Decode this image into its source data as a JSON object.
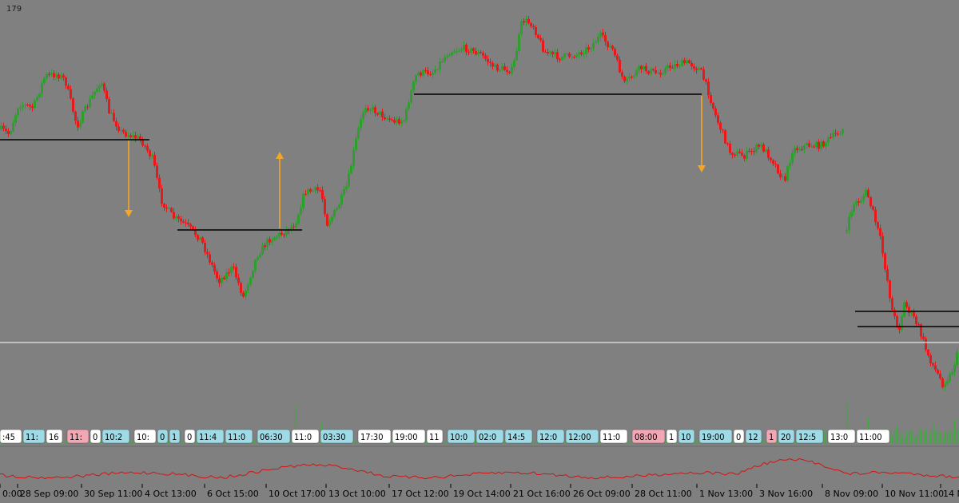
{
  "chart_data": {
    "type": "candlestick",
    "corner_label": "179",
    "x_tick_labels": [
      "0:00",
      "28 Sep 09:00",
      "30 Sep 11:00",
      "4 Oct 13:00",
      "6 Oct 15:00",
      "10 Oct 17:00",
      "13 Oct 10:00",
      "17 Oct 12:00",
      "19 Oct 14:00",
      "21 Oct 16:00",
      "26 Oct 09:00",
      "28 Oct 11:00",
      "1 Nov 13:00",
      "3 Nov 16:00",
      "8 Nov 09:00",
      "10 Nov 11:00",
      "14 N"
    ],
    "session_tags": [
      {
        "text": ":45",
        "color": "#ffffff"
      },
      {
        "text": "11:",
        "color": "#9fdbe7"
      },
      {
        "text": "16",
        "color": "#ffffff"
      },
      {
        "text": "11:",
        "color": "#f2a7b5"
      },
      {
        "text": "0",
        "color": "#ffffff"
      },
      {
        "text": "10:2",
        "color": "#9fdbe7"
      },
      {
        "text": "10:",
        "color": "#ffffff"
      },
      {
        "text": "0",
        "color": "#9fdbe7"
      },
      {
        "text": "1",
        "color": "#9fdbe7"
      },
      {
        "text": "0",
        "color": "#ffffff"
      },
      {
        "text": "11:4",
        "color": "#9fdbe7"
      },
      {
        "text": "11:0",
        "color": "#9fdbe7"
      },
      {
        "text": "06:30",
        "color": "#9fdbe7"
      },
      {
        "text": "11:0",
        "color": "#ffffff"
      },
      {
        "text": "03:30",
        "color": "#9fdbe7"
      },
      {
        "text": "17:30",
        "color": "#ffffff"
      },
      {
        "text": "19:00",
        "color": "#ffffff"
      },
      {
        "text": "11",
        "color": "#ffffff"
      },
      {
        "text": "10:0",
        "color": "#9fdbe7"
      },
      {
        "text": "02:0",
        "color": "#9fdbe7"
      },
      {
        "text": "14:5",
        "color": "#9fdbe7"
      },
      {
        "text": "12:0",
        "color": "#9fdbe7"
      },
      {
        "text": "12:00",
        "color": "#9fdbe7"
      },
      {
        "text": "11:0",
        "color": "#ffffff"
      },
      {
        "text": "08:00",
        "color": "#f2a7b5"
      },
      {
        "text": "1",
        "color": "#ffffff"
      },
      {
        "text": "10",
        "color": "#9fdbe7"
      },
      {
        "text": "19:00",
        "color": "#9fdbe7"
      },
      {
        "text": "0",
        "color": "#ffffff"
      },
      {
        "text": "12",
        "color": "#9fdbe7"
      },
      {
        "text": "1",
        "color": "#f2a7b5"
      },
      {
        "text": "20",
        "color": "#9fdbe7"
      },
      {
        "text": "12:5",
        "color": "#9fdbe7"
      },
      {
        "text": "13:0",
        "color": "#ffffff"
      },
      {
        "text": "11:00",
        "color": "#ffffff"
      }
    ],
    "colors": {
      "background": "#808080",
      "bull": "#2e9e2e",
      "bear": "#e8191a",
      "level_line": "#000000",
      "arrow": "#f5a623",
      "volume": "#3fa83f",
      "indicator": "#d21414",
      "white_line": "#ffffff"
    },
    "grid": false
  }
}
